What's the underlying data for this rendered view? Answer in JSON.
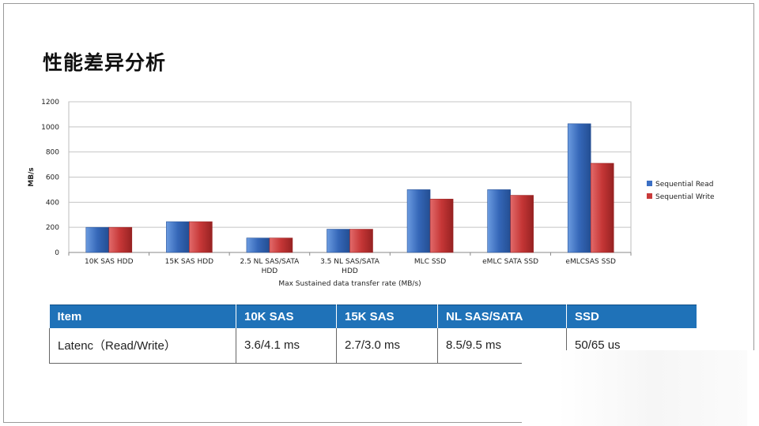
{
  "title": "性能差异分析",
  "chart_data": {
    "type": "bar",
    "categories": [
      [
        "10K SAS HDD"
      ],
      [
        "15K SAS HDD"
      ],
      [
        "2.5 NL SAS/SATA",
        "HDD"
      ],
      [
        "3.5 NL SAS/SATA",
        "HDD"
      ],
      [
        "MLC SSD"
      ],
      [
        "eMLC SATA SSD"
      ],
      [
        "eMLCSAS  SSD"
      ]
    ],
    "series": [
      {
        "name": "Sequential Read",
        "values": [
          200,
          245,
          115,
          185,
          500,
          500,
          1025
        ],
        "color": "#3b6fc4"
      },
      {
        "name": "Sequential Write",
        "values": [
          200,
          245,
          115,
          185,
          425,
          455,
          710
        ],
        "color": "#c93a3a"
      }
    ],
    "xlabel": "Max Sustained data transfer rate (MB/s)",
    "ylabel": "MB/s",
    "ylim": [
      0,
      1200
    ],
    "yticks": [
      0,
      200,
      400,
      600,
      800,
      1000,
      1200
    ],
    "grid": true,
    "legend_position": "right"
  },
  "table": {
    "headers": [
      "Item",
      "10K SAS",
      "15K SAS",
      "NL SAS/SATA",
      "SSD"
    ],
    "rows": [
      [
        "Latenc（Read/Write）",
        "3.6/4.1 ms",
        "2.7/3.0 ms",
        "8.5/9.5 ms",
        "50/65 us"
      ]
    ]
  }
}
